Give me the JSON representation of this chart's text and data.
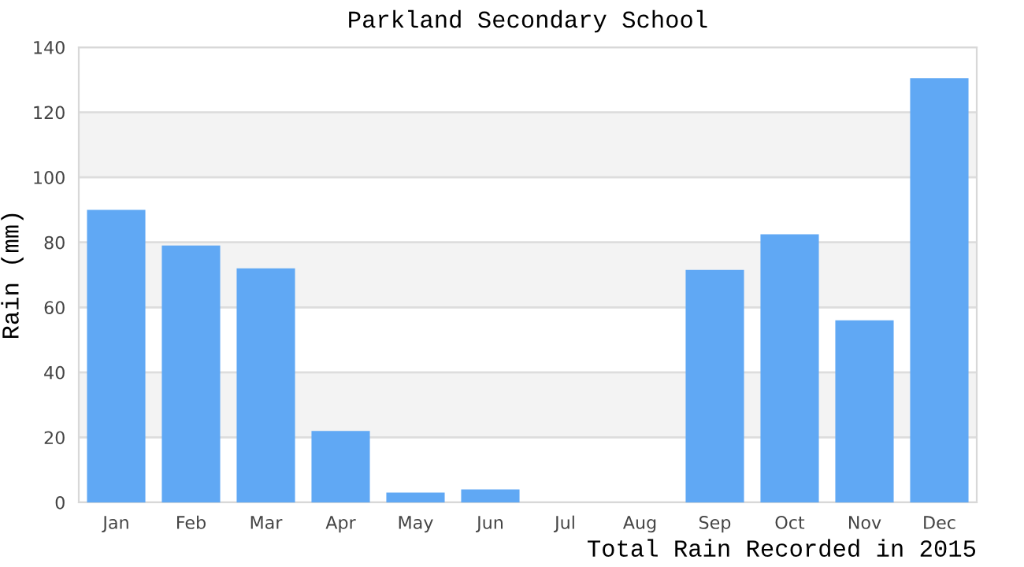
{
  "chart_data": {
    "type": "bar",
    "title": "Parkland Secondary School",
    "xlabel": "Total Rain Recorded in 2015",
    "ylabel": "Rain (mm)",
    "categories": [
      "Jan",
      "Feb",
      "Mar",
      "Apr",
      "May",
      "Jun",
      "Jul",
      "Aug",
      "Sep",
      "Oct",
      "Nov",
      "Dec"
    ],
    "values": [
      90,
      79,
      72,
      22,
      3,
      4,
      0,
      0,
      71.5,
      82.5,
      56,
      130.5
    ],
    "color": "#60a8f4",
    "ylim": [
      0,
      140
    ],
    "yticks": [
      0,
      20,
      40,
      60,
      80,
      100,
      120,
      140
    ],
    "grid": "y",
    "legend": false
  }
}
